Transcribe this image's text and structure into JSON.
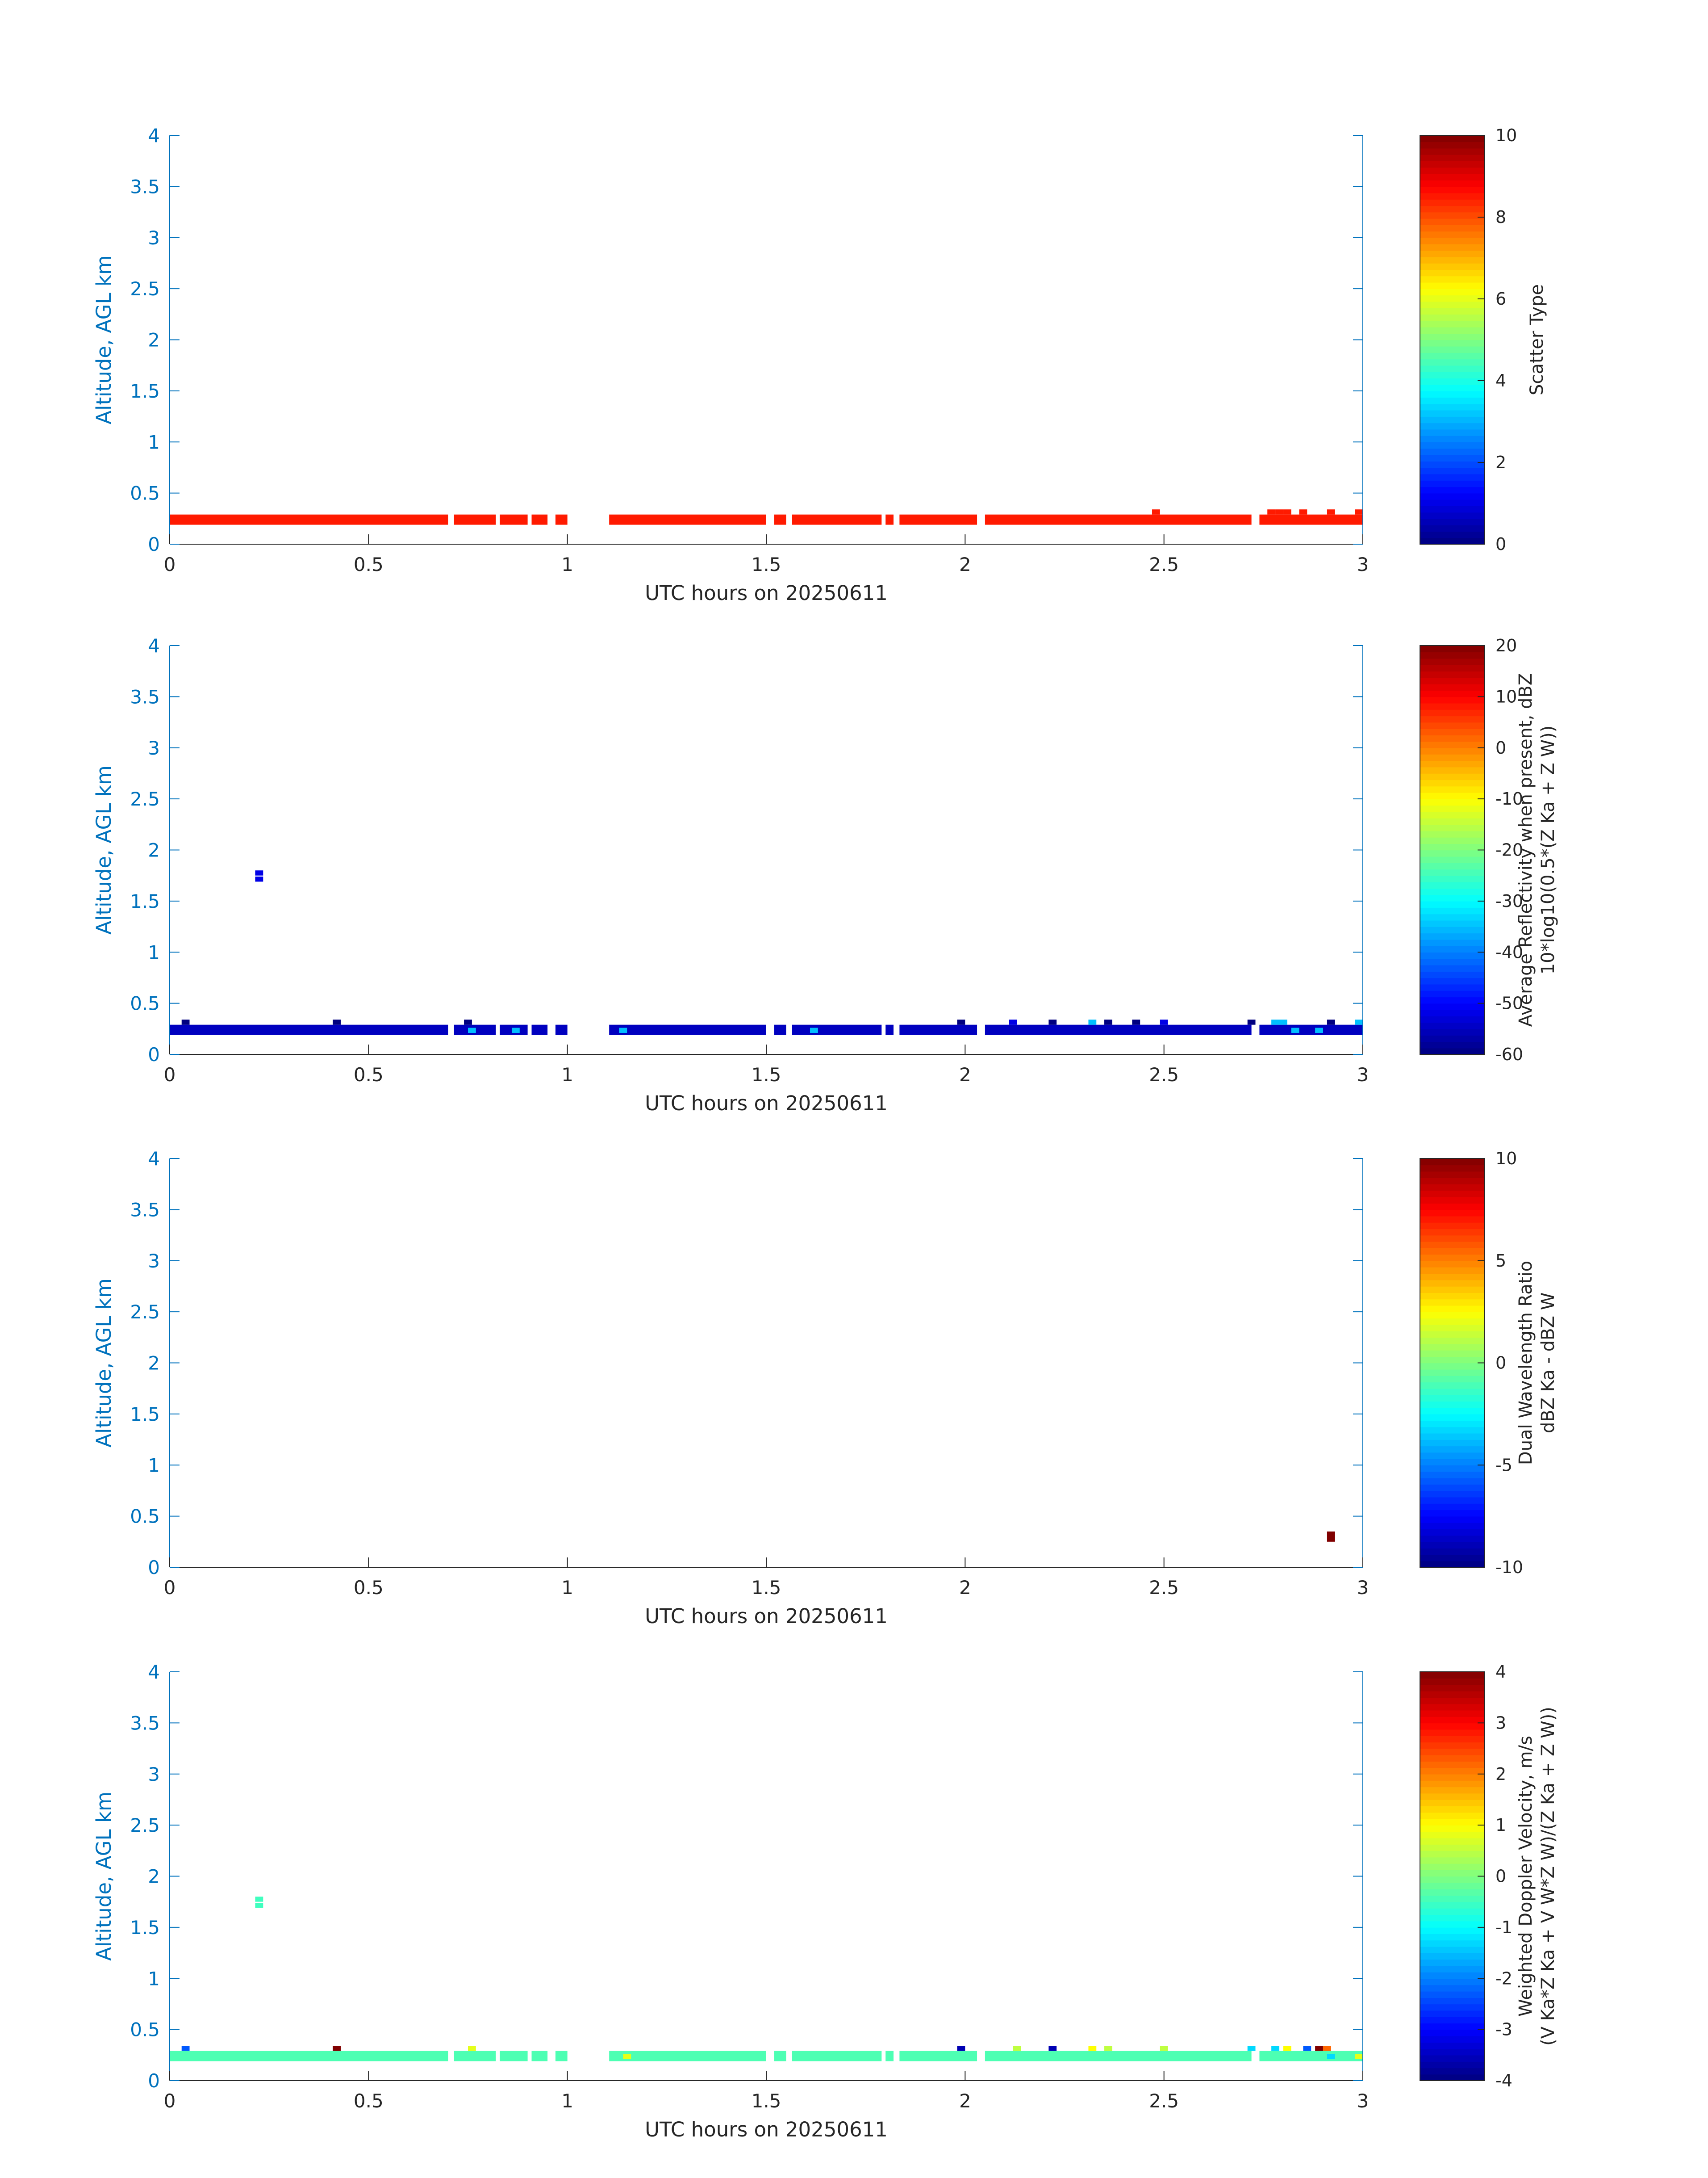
{
  "chart_data": [
    {
      "type": "heatmap",
      "xlabel": "UTC hours on 20250611",
      "ylabel": "Altitude, AGL km",
      "xlim": [
        0,
        3
      ],
      "ylim": [
        0,
        4
      ],
      "xticks": [
        "0",
        "0.5",
        "1",
        "1.5",
        "2",
        "2.5",
        "3"
      ],
      "yticks": [
        "0",
        "0.5",
        "1",
        "1.5",
        "2",
        "2.5",
        "3",
        "3.5",
        "4"
      ],
      "colorbar": {
        "label_lines": [
          "Scatter Type"
        ],
        "range": [
          0,
          10
        ],
        "ticks": [
          "0",
          "2",
          "4",
          "6",
          "8",
          "10"
        ]
      },
      "base_band": {
        "y": [
          0.19,
          0.29
        ],
        "value": 8.5,
        "segments": [
          [
            0.0,
            0.7
          ],
          [
            0.715,
            0.82
          ],
          [
            0.83,
            0.9
          ],
          [
            0.91,
            0.95
          ],
          [
            0.97,
            1.0
          ],
          [
            1.105,
            1.5
          ],
          [
            1.52,
            1.55
          ],
          [
            1.565,
            1.79
          ],
          [
            1.8,
            1.82
          ],
          [
            1.835,
            2.03
          ],
          [
            2.05,
            2.72
          ],
          [
            2.74,
            3.0
          ]
        ]
      },
      "cells": [
        {
          "x": 2.48,
          "y": 0.29,
          "v": 8.5
        },
        {
          "x": 2.77,
          "y": 0.29,
          "v": 8.5
        },
        {
          "x": 2.79,
          "y": 0.29,
          "v": 8.5
        },
        {
          "x": 2.81,
          "y": 0.29,
          "v": 8.5
        },
        {
          "x": 2.85,
          "y": 0.29,
          "v": 8.5
        },
        {
          "x": 2.92,
          "y": 0.29,
          "v": 8.5
        },
        {
          "x": 2.99,
          "y": 0.29,
          "v": 8.5
        }
      ]
    },
    {
      "type": "heatmap",
      "xlabel": "UTC hours on 20250611",
      "ylabel": "Altitude, AGL km",
      "xlim": [
        0,
        3
      ],
      "ylim": [
        0,
        4
      ],
      "xticks": [
        "0",
        "0.5",
        "1",
        "1.5",
        "2",
        "2.5",
        "3"
      ],
      "yticks": [
        "0",
        "0.5",
        "1",
        "1.5",
        "2",
        "2.5",
        "3",
        "3.5",
        "4"
      ],
      "colorbar": {
        "label_lines": [
          "Average Reflectivity when present, dBZ",
          "10*log10(0.5*(Z Ka + Z W))"
        ],
        "range": [
          -60,
          20
        ],
        "ticks": [
          "-60",
          "-50",
          "-40",
          "-30",
          "-20",
          "-10",
          "0",
          "10",
          "20"
        ]
      },
      "base_band": {
        "y": [
          0.19,
          0.29
        ],
        "value": -55,
        "segments": [
          [
            0.0,
            0.7
          ],
          [
            0.715,
            0.82
          ],
          [
            0.83,
            0.9
          ],
          [
            0.91,
            0.95
          ],
          [
            0.97,
            1.0
          ],
          [
            1.105,
            1.5
          ],
          [
            1.52,
            1.55
          ],
          [
            1.565,
            1.79
          ],
          [
            1.8,
            1.82
          ],
          [
            1.835,
            2.03
          ],
          [
            2.05,
            2.72
          ],
          [
            2.74,
            3.0
          ]
        ]
      },
      "cells": [
        {
          "x": 0.225,
          "y": 1.69,
          "v": -52
        },
        {
          "x": 0.225,
          "y": 1.75,
          "v": -52
        },
        {
          "x": 0.04,
          "y": 0.29,
          "v": -60
        },
        {
          "x": 0.42,
          "y": 0.29,
          "v": -60
        },
        {
          "x": 0.75,
          "y": 0.29,
          "v": -60
        },
        {
          "x": 0.76,
          "y": 0.21,
          "v": -35
        },
        {
          "x": 0.87,
          "y": 0.21,
          "v": -35
        },
        {
          "x": 1.14,
          "y": 0.21,
          "v": -35
        },
        {
          "x": 1.62,
          "y": 0.21,
          "v": -35
        },
        {
          "x": 1.99,
          "y": 0.29,
          "v": -60
        },
        {
          "x": 2.12,
          "y": 0.29,
          "v": -52
        },
        {
          "x": 2.22,
          "y": 0.29,
          "v": -60
        },
        {
          "x": 2.32,
          "y": 0.29,
          "v": -35
        },
        {
          "x": 2.36,
          "y": 0.29,
          "v": -60
        },
        {
          "x": 2.43,
          "y": 0.29,
          "v": -60
        },
        {
          "x": 2.5,
          "y": 0.29,
          "v": -52
        },
        {
          "x": 2.72,
          "y": 0.29,
          "v": -60
        },
        {
          "x": 2.78,
          "y": 0.29,
          "v": -35
        },
        {
          "x": 2.8,
          "y": 0.29,
          "v": -35
        },
        {
          "x": 2.83,
          "y": 0.21,
          "v": -35
        },
        {
          "x": 2.89,
          "y": 0.21,
          "v": -35
        },
        {
          "x": 2.92,
          "y": 0.29,
          "v": -60
        },
        {
          "x": 2.99,
          "y": 0.29,
          "v": -35
        }
      ]
    },
    {
      "type": "heatmap",
      "xlabel": "UTC hours on 20250611",
      "ylabel": "Altitude, AGL km",
      "xlim": [
        0,
        3
      ],
      "ylim": [
        0,
        4
      ],
      "xticks": [
        "0",
        "0.5",
        "1",
        "1.5",
        "2",
        "2.5",
        "3"
      ],
      "yticks": [
        "0",
        "0.5",
        "1",
        "1.5",
        "2",
        "2.5",
        "3",
        "3.5",
        "4"
      ],
      "colorbar": {
        "label_lines": [
          "Dual Wavelength Ratio",
          "dBZ Ka - dBZ W"
        ],
        "range": [
          -10,
          10
        ],
        "ticks": [
          "-10",
          "-5",
          "0",
          "5",
          "10"
        ]
      },
      "base_band": null,
      "cells": [
        {
          "x": 2.92,
          "y": 0.25,
          "v": 10
        }
      ]
    },
    {
      "type": "heatmap",
      "xlabel": "UTC hours on 20250611",
      "ylabel": "Altitude, AGL km",
      "xlim": [
        0,
        3
      ],
      "ylim": [
        0,
        4
      ],
      "xticks": [
        "0",
        "0.5",
        "1",
        "1.5",
        "2",
        "2.5",
        "3"
      ],
      "yticks": [
        "0",
        "0.5",
        "1",
        "1.5",
        "2",
        "2.5",
        "3",
        "3.5",
        "4"
      ],
      "colorbar": {
        "label_lines": [
          "Weighted Doppler Velocity, m/s",
          "(V Ka*Z Ka + V W*Z W)/(Z Ka + Z W))"
        ],
        "range": [
          -4,
          4
        ],
        "ticks": [
          "-4",
          "-3",
          "-2",
          "-1",
          "0",
          "1",
          "2",
          "3",
          "4"
        ]
      },
      "base_band": {
        "y": [
          0.19,
          0.29
        ],
        "value": -0.4,
        "segments": [
          [
            0.0,
            0.7
          ],
          [
            0.715,
            0.82
          ],
          [
            0.83,
            0.9
          ],
          [
            0.91,
            0.95
          ],
          [
            0.97,
            1.0
          ],
          [
            1.105,
            1.5
          ],
          [
            1.52,
            1.55
          ],
          [
            1.565,
            1.79
          ],
          [
            1.8,
            1.82
          ],
          [
            1.835,
            2.03
          ],
          [
            2.05,
            2.72
          ],
          [
            2.74,
            3.0
          ]
        ]
      },
      "cells": [
        {
          "x": 0.225,
          "y": 1.69,
          "v": -0.5
        },
        {
          "x": 0.225,
          "y": 1.75,
          "v": -0.5
        },
        {
          "x": 0.04,
          "y": 0.29,
          "v": -2.3
        },
        {
          "x": 0.42,
          "y": 0.29,
          "v": 4
        },
        {
          "x": 0.76,
          "y": 0.29,
          "v": 0.8
        },
        {
          "x": 1.15,
          "y": 0.21,
          "v": 0.8
        },
        {
          "x": 1.99,
          "y": 0.29,
          "v": -3.6
        },
        {
          "x": 2.13,
          "y": 0.29,
          "v": 0.5
        },
        {
          "x": 2.22,
          "y": 0.29,
          "v": -3.6
        },
        {
          "x": 2.32,
          "y": 0.29,
          "v": 1
        },
        {
          "x": 2.36,
          "y": 0.29,
          "v": 0.5
        },
        {
          "x": 2.5,
          "y": 0.29,
          "v": 0.5
        },
        {
          "x": 2.72,
          "y": 0.29,
          "v": -1.3
        },
        {
          "x": 2.78,
          "y": 0.29,
          "v": -1.3
        },
        {
          "x": 2.81,
          "y": 0.29,
          "v": 1
        },
        {
          "x": 2.86,
          "y": 0.29,
          "v": -2.3
        },
        {
          "x": 2.89,
          "y": 0.29,
          "v": 4
        },
        {
          "x": 2.91,
          "y": 0.29,
          "v": 2.2
        },
        {
          "x": 2.92,
          "y": 0.21,
          "v": -1.3
        },
        {
          "x": 2.99,
          "y": 0.21,
          "v": 0.8
        }
      ]
    }
  ]
}
